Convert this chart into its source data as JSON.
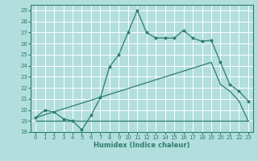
{
  "xlabel": "Humidex (Indice chaleur)",
  "ylabel": "",
  "bg_color": "#b2dede",
  "grid_color": "#ffffff",
  "line_color": "#2e7d6e",
  "xlim": [
    -0.5,
    23.5
  ],
  "ylim": [
    18,
    29.5
  ],
  "yticks": [
    18,
    19,
    20,
    21,
    22,
    23,
    24,
    25,
    26,
    27,
    28,
    29
  ],
  "xticks": [
    0,
    1,
    2,
    3,
    4,
    5,
    6,
    7,
    8,
    9,
    10,
    11,
    12,
    13,
    14,
    15,
    16,
    17,
    18,
    19,
    20,
    21,
    22,
    23
  ],
  "line1_x": [
    0,
    1,
    2,
    3,
    4,
    5,
    6,
    7,
    8,
    9,
    10,
    11,
    12,
    13,
    14,
    15,
    16,
    17,
    18,
    19,
    20,
    21,
    22,
    23
  ],
  "line1_y": [
    19.3,
    20.0,
    19.8,
    19.2,
    19.0,
    18.2,
    19.5,
    21.1,
    23.9,
    25.0,
    27.0,
    29.0,
    27.0,
    26.5,
    26.5,
    26.5,
    27.2,
    26.5,
    26.2,
    26.3,
    24.3,
    22.3,
    21.7,
    20.8
  ],
  "line2_x": [
    0,
    19,
    20,
    21,
    22,
    23
  ],
  "line2_y": [
    19.3,
    24.3,
    22.3,
    21.7,
    20.8,
    19.0
  ],
  "line3_x": [
    0,
    23
  ],
  "line3_y": [
    19.0,
    19.0
  ]
}
